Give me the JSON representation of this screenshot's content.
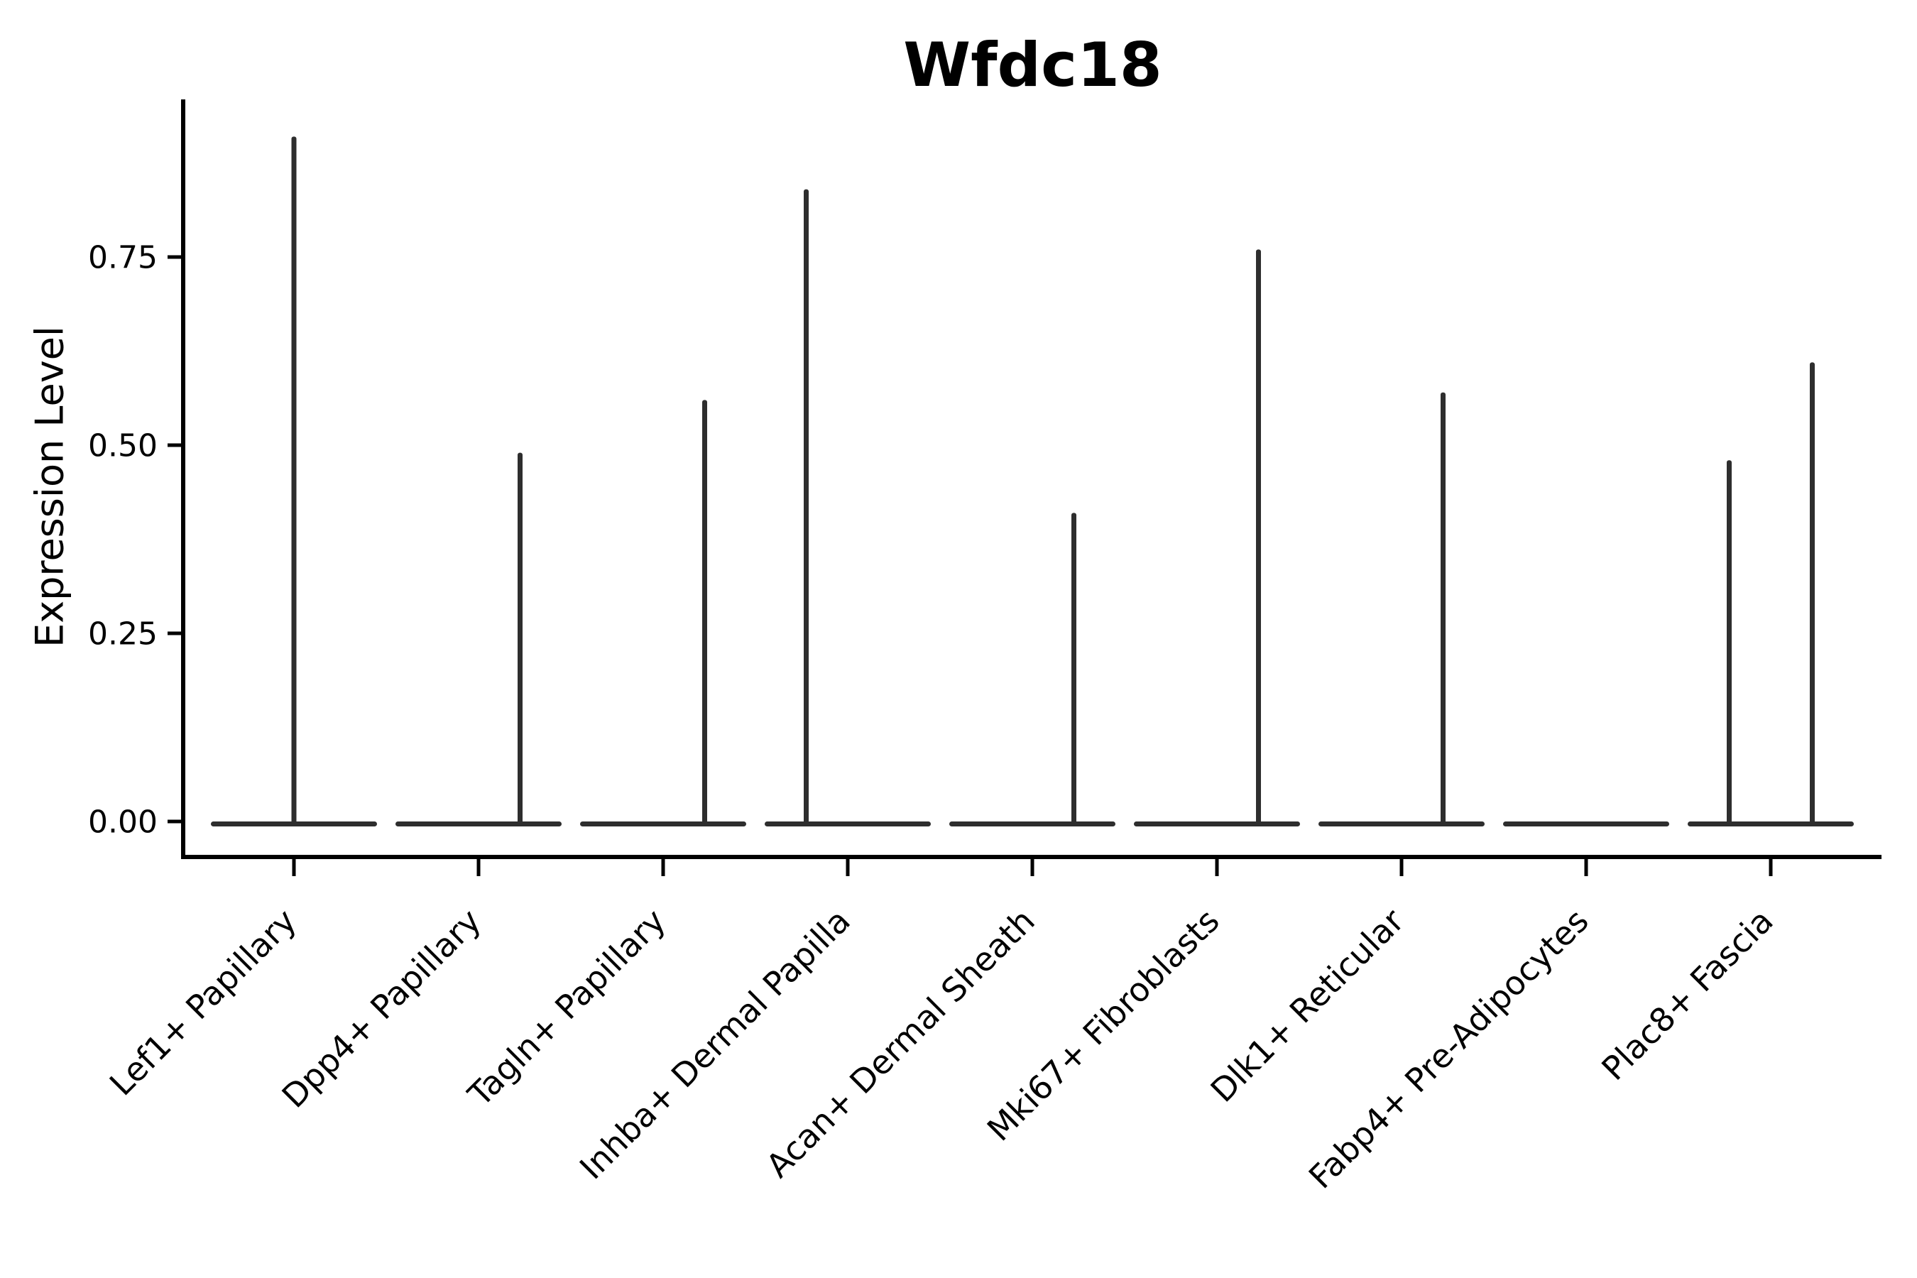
{
  "chart_data": {
    "type": "violin",
    "title": "Wfdc18",
    "ylabel": "Expression Level",
    "xlabel": "",
    "y_ticks": [
      "0.00",
      "0.25",
      "0.50",
      "0.75"
    ],
    "y_tick_values": [
      0,
      0.25,
      0.5,
      0.75
    ],
    "ylim": [
      -0.046,
      0.958
    ],
    "grid": false,
    "legend": "none",
    "violin_color": "#2e2e2e",
    "axis_color": "#000000",
    "background_color": "#ffffff",
    "categories": [
      {
        "label": "Lef1+ Papillary",
        "spikes": [
          {
            "position": "center",
            "max_expression": 0.91
          }
        ]
      },
      {
        "label": "Dpp4+ Papillary",
        "spikes": [
          {
            "position": "right",
            "max_expression": 0.49
          }
        ]
      },
      {
        "label": "Tagln+ Papillary",
        "spikes": [
          {
            "position": "right",
            "max_expression": 0.56
          }
        ]
      },
      {
        "label": "Inhba+ Dermal Papilla",
        "spikes": [
          {
            "position": "left",
            "max_expression": 0.84
          }
        ]
      },
      {
        "label": "Acan+ Dermal Sheath",
        "spikes": [
          {
            "position": "right",
            "max_expression": 0.41
          }
        ]
      },
      {
        "label": "Mki67+ Fibroblasts",
        "spikes": [
          {
            "position": "right",
            "max_expression": 0.76
          }
        ]
      },
      {
        "label": "Dlk1+ Reticular",
        "spikes": [
          {
            "position": "right",
            "max_expression": 0.57
          }
        ]
      },
      {
        "label": "Fabp4+ Pre-Adipocytes",
        "spikes": []
      },
      {
        "label": "Plac8+ Fascia",
        "spikes": [
          {
            "position": "left",
            "max_expression": 0.48
          },
          {
            "position": "right",
            "max_expression": 0.61
          }
        ]
      }
    ]
  }
}
